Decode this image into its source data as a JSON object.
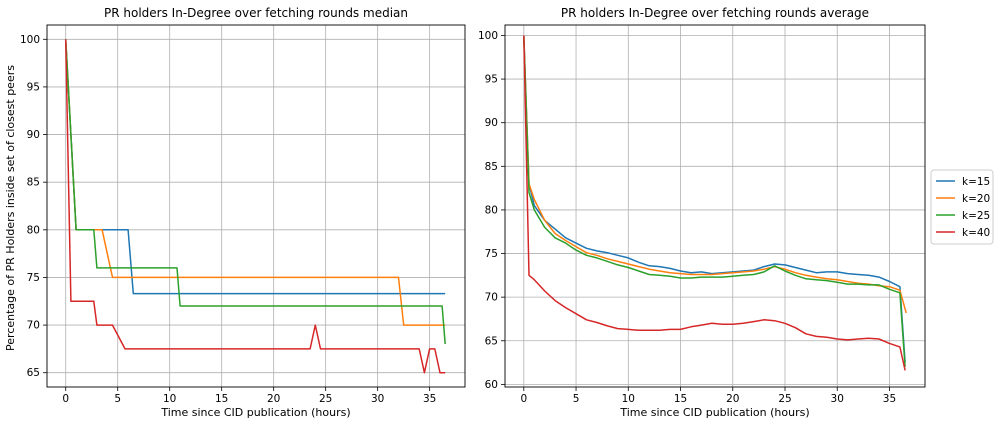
{
  "ylabel": "Percentage of PR Holders inside set of closest peers",
  "legend": {
    "placement": "right",
    "entries": [
      {
        "label": "k=15",
        "color": "#1f77b4"
      },
      {
        "label": "k=20",
        "color": "#ff7f0e"
      },
      {
        "label": "k=25",
        "color": "#2ca02c"
      },
      {
        "label": "k=40",
        "color": "#d62728"
      }
    ]
  },
  "chart_data": [
    {
      "type": "line",
      "title": "PR holders In-Degree over fetching rounds median",
      "xlabel": "Time since CID publication (hours)",
      "ylabel": "Percentage of PR Holders inside set of closest peers",
      "xlim": [
        -1.8,
        38.4
      ],
      "ylim": [
        63.5,
        101.5
      ],
      "xticks": [
        0,
        5,
        10,
        15,
        20,
        25,
        30,
        35
      ],
      "yticks": [
        65,
        70,
        75,
        80,
        85,
        90,
        95,
        100
      ],
      "grid": true,
      "series": [
        {
          "name": "k=15",
          "color": "#1f77b4",
          "x": [
            0,
            0.5,
            1,
            6,
            6.5,
            36.5
          ],
          "y": [
            100,
            90,
            80,
            80,
            73.3,
            73.3
          ]
        },
        {
          "name": "k=20",
          "color": "#ff7f0e",
          "x": [
            0,
            0.5,
            1,
            3.5,
            4.5,
            32,
            32.5,
            36.5
          ],
          "y": [
            100,
            90,
            80,
            80,
            75,
            75,
            70,
            70
          ]
        },
        {
          "name": "k=25",
          "color": "#2ca02c",
          "x": [
            0,
            0.5,
            1,
            2.7,
            3,
            10.7,
            11,
            36.2,
            36.5
          ],
          "y": [
            100,
            90,
            80,
            80,
            76,
            76,
            72,
            72,
            68
          ]
        },
        {
          "name": "k=40",
          "color": "#d62728",
          "x": [
            0,
            0.5,
            2.7,
            3,
            4.5,
            5.7,
            23.5,
            24,
            24.5,
            34,
            34.5,
            35,
            35.5,
            36,
            36.5
          ],
          "y": [
            100,
            72.5,
            72.5,
            70,
            70,
            67.5,
            67.5,
            70,
            67.5,
            67.5,
            65,
            67.5,
            67.5,
            65,
            65
          ]
        }
      ]
    },
    {
      "type": "line",
      "title": "PR holders In-Degree over fetching rounds average",
      "xlabel": "Time since CID publication (hours)",
      "ylabel": "",
      "xlim": [
        -1.8,
        38.4
      ],
      "ylim": [
        59.7,
        101.2
      ],
      "xticks": [
        0,
        5,
        10,
        15,
        20,
        25,
        30,
        35
      ],
      "yticks": [
        60,
        65,
        70,
        75,
        80,
        85,
        90,
        95,
        100
      ],
      "grid": true,
      "series": [
        {
          "name": "k=15",
          "color": "#1f77b4",
          "x": [
            0,
            0.5,
            1,
            2,
            3,
            4,
            5,
            6,
            7,
            8,
            9,
            10,
            11,
            12,
            13,
            14,
            15,
            16,
            17,
            18,
            19,
            20,
            21,
            22,
            23,
            24,
            25,
            26,
            27,
            28,
            29,
            30,
            31,
            32,
            33,
            34,
            35,
            36,
            36.5
          ],
          "y": [
            100,
            83,
            80.5,
            78.8,
            77.8,
            76.8,
            76.2,
            75.6,
            75.3,
            75.1,
            74.8,
            74.5,
            74.0,
            73.6,
            73.5,
            73.3,
            73.0,
            72.8,
            72.9,
            72.7,
            72.8,
            72.9,
            73.0,
            73.1,
            73.5,
            73.8,
            73.7,
            73.4,
            73.1,
            72.8,
            72.9,
            72.9,
            72.7,
            72.6,
            72.5,
            72.3,
            71.8,
            71.2,
            62.5
          ]
        },
        {
          "name": "k=20",
          "color": "#ff7f0e",
          "x": [
            0,
            0.5,
            1,
            2,
            3,
            4,
            5,
            6,
            7,
            8,
            9,
            10,
            11,
            12,
            13,
            14,
            15,
            16,
            17,
            18,
            19,
            20,
            21,
            22,
            23,
            24,
            25,
            26,
            27,
            28,
            29,
            30,
            31,
            32,
            33,
            34,
            35,
            36,
            36.6
          ],
          "y": [
            100,
            83,
            81.2,
            78.8,
            77.3,
            76.5,
            75.8,
            75.1,
            74.8,
            74.4,
            74.1,
            73.8,
            73.5,
            73.2,
            73.0,
            72.8,
            72.7,
            72.6,
            72.6,
            72.6,
            72.7,
            72.8,
            72.9,
            73.0,
            73.2,
            73.5,
            73.2,
            72.8,
            72.5,
            72.3,
            72.1,
            72.0,
            71.8,
            71.6,
            71.5,
            71.3,
            71.2,
            70.8,
            68.2
          ]
        },
        {
          "name": "k=25",
          "color": "#2ca02c",
          "x": [
            0,
            0.5,
            1,
            2,
            3,
            4,
            5,
            6,
            7,
            8,
            9,
            10,
            11,
            12,
            13,
            14,
            15,
            16,
            17,
            18,
            19,
            20,
            21,
            22,
            23,
            24,
            25,
            26,
            27,
            28,
            29,
            30,
            31,
            32,
            33,
            34,
            35,
            36,
            36.5
          ],
          "y": [
            100,
            82,
            80,
            78,
            76.8,
            76.2,
            75.4,
            74.8,
            74.5,
            74.1,
            73.7,
            73.4,
            73.0,
            72.6,
            72.5,
            72.4,
            72.2,
            72.2,
            72.3,
            72.3,
            72.3,
            72.4,
            72.5,
            72.6,
            72.9,
            73.6,
            73.0,
            72.5,
            72.1,
            72.0,
            71.9,
            71.7,
            71.5,
            71.5,
            71.4,
            71.4,
            70.9,
            70.5,
            62.0
          ]
        },
        {
          "name": "k=40",
          "color": "#d62728",
          "x": [
            0,
            0.5,
            1,
            2,
            3,
            4,
            5,
            6,
            7,
            8,
            9,
            10,
            11,
            12,
            13,
            14,
            15,
            16,
            17,
            18,
            19,
            20,
            21,
            22,
            23,
            24,
            25,
            26,
            27,
            28,
            29,
            30,
            31,
            32,
            33,
            34,
            35,
            36,
            36.5
          ],
          "y": [
            100,
            72.5,
            72.0,
            70.7,
            69.6,
            68.8,
            68.1,
            67.4,
            67.1,
            66.7,
            66.4,
            66.3,
            66.2,
            66.2,
            66.2,
            66.3,
            66.3,
            66.6,
            66.8,
            67.0,
            66.9,
            66.9,
            67.0,
            67.2,
            67.4,
            67.3,
            67.0,
            66.5,
            65.8,
            65.5,
            65.4,
            65.2,
            65.1,
            65.2,
            65.3,
            65.2,
            64.7,
            64.3,
            61.6
          ]
        }
      ]
    }
  ]
}
